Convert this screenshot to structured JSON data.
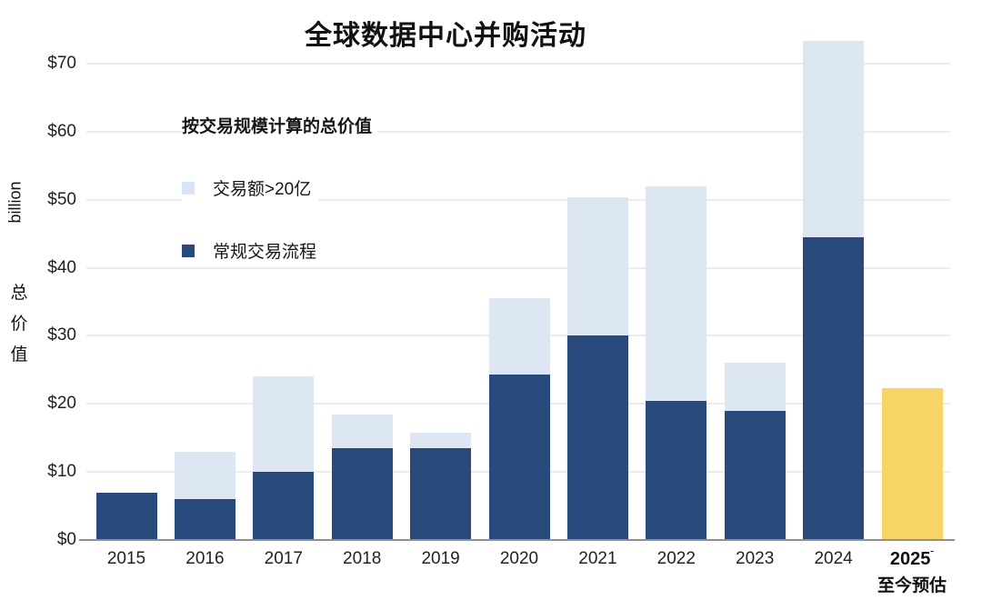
{
  "chart_data": {
    "type": "bar",
    "stacked": true,
    "title": "全球数据中心并购活动",
    "y_axis": {
      "unit": "billion",
      "label": "总价值",
      "ticks": [
        {
          "label": "$0",
          "value": 0
        },
        {
          "label": "$10",
          "value": 10
        },
        {
          "label": "$20",
          "value": 20
        },
        {
          "label": "$30",
          "value": 30
        },
        {
          "label": "$40",
          "value": 40
        },
        {
          "label": "$50",
          "value": 50
        },
        {
          "label": "$60",
          "value": 60
        },
        {
          "label": "$70",
          "value": 70
        }
      ],
      "max": 70
    },
    "legend": {
      "title": "按交易规模计算的总价值",
      "items": [
        {
          "label": "交易额>20亿",
          "color": "#D9E5F1"
        },
        {
          "label": "常规交易流程",
          "color": "#27497B"
        }
      ]
    },
    "colors": {
      "regular": "#27497B",
      "large_deals": "#DCE7F3",
      "estimate": "#F8D366",
      "gridline": "#ececec"
    },
    "bars": [
      {
        "year": "2015",
        "regular": 7.0,
        "large_deals": 0.0,
        "total": 7.0
      },
      {
        "year": "2016",
        "regular": 6.0,
        "large_deals": 7.0,
        "total": 13.0
      },
      {
        "year": "2017",
        "regular": 10.0,
        "large_deals": 14.0,
        "total": 24.0
      },
      {
        "year": "2018",
        "regular": 13.5,
        "large_deals": 5.0,
        "total": 18.5
      },
      {
        "year": "2019",
        "regular": 13.5,
        "large_deals": 2.3,
        "total": 15.8
      },
      {
        "year": "2020",
        "regular": 24.3,
        "large_deals": 11.2,
        "total": 35.5
      },
      {
        "year": "2021",
        "regular": 30.0,
        "large_deals": 20.3,
        "total": 50.3
      },
      {
        "year": "2022",
        "regular": 20.5,
        "large_deals": 31.5,
        "total": 52.0
      },
      {
        "year": "2023",
        "regular": 19.0,
        "large_deals": 7.0,
        "total": 26.0
      },
      {
        "year": "2024",
        "regular": 44.5,
        "large_deals": 28.8,
        "total": 73.3
      },
      {
        "year": "2025",
        "estimate": 22.3,
        "sublabel": "至今预估",
        "mark": "ˉ",
        "total": 22.3
      }
    ]
  }
}
